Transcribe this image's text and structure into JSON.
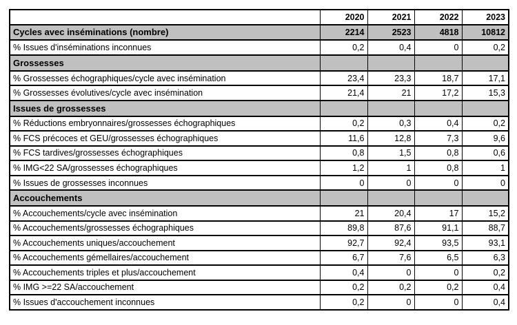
{
  "colors": {
    "page_bg": "#ffffff",
    "section_bg": "#c0c0c0",
    "border": "#000000",
    "text": "#000000"
  },
  "table": {
    "year_columns": [
      "2020",
      "2021",
      "2022",
      "2023"
    ],
    "rows": [
      {
        "label": "Cycles avec inséminations (nombre)",
        "style": "total",
        "values": [
          "2214",
          "2523",
          "4818",
          "10812"
        ]
      },
      {
        "label": "% Issues d'inséminations inconnues",
        "style": "data",
        "values": [
          "0,2",
          "0,4",
          "0",
          "0,2"
        ]
      },
      {
        "label": "Grossesses",
        "style": "section",
        "values": [
          "",
          "",
          "",
          ""
        ]
      },
      {
        "label": "% Grossesses échographiques/cycle avec insémination",
        "style": "data",
        "values": [
          "23,4",
          "23,3",
          "18,7",
          "17,1"
        ]
      },
      {
        "label": "% Grossesses évolutives/cycle avec insémination",
        "style": "data",
        "values": [
          "21,4",
          "21",
          "17,2",
          "15,3"
        ]
      },
      {
        "label": "Issues de grossesses",
        "style": "section",
        "values": [
          "",
          "",
          "",
          ""
        ]
      },
      {
        "label": "% Réductions embryonnaires/grossesses échographiques",
        "style": "data",
        "values": [
          "0,2",
          "0,3",
          "0,4",
          "0,2"
        ]
      },
      {
        "label": "% FCS précoces et GEU/grossesses échographiques",
        "style": "data",
        "values": [
          "11,6",
          "12,8",
          "7,3",
          "9,6"
        ]
      },
      {
        "label": "% FCS tardives/grossesses échographiques",
        "style": "data",
        "values": [
          "0,8",
          "1,5",
          "0,8",
          "0,6"
        ]
      },
      {
        "label": "% IMG<22 SA/grossesses échographiques",
        "style": "data",
        "values": [
          "1,2",
          "1",
          "0,8",
          "1"
        ]
      },
      {
        "label": "% Issues de grossesses inconnues",
        "style": "data",
        "values": [
          "0",
          "0",
          "0",
          "0"
        ]
      },
      {
        "label": "Accouchements",
        "style": "section",
        "values": [
          "",
          "",
          "",
          ""
        ]
      },
      {
        "label": "% Accouchements/cycle avec insémination",
        "style": "data",
        "values": [
          "21",
          "20,4",
          "17",
          "15,2"
        ]
      },
      {
        "label": "% Accouchements/grossesses échographiques",
        "style": "data",
        "values": [
          "89,8",
          "87,6",
          "91,1",
          "88,7"
        ]
      },
      {
        "label": "% Accouchements uniques/accouchement",
        "style": "data",
        "values": [
          "92,7",
          "92,4",
          "93,5",
          "93,1"
        ]
      },
      {
        "label": "% Accouchements gémellaires/accouchement",
        "style": "data",
        "values": [
          "6,7",
          "7,6",
          "6,5",
          "6,3"
        ]
      },
      {
        "label": "% Accouchements triples et plus/accouchement",
        "style": "data",
        "values": [
          "0,4",
          "0",
          "0",
          "0,2"
        ]
      },
      {
        "label": "% IMG >=22 SA/accouchement",
        "style": "data",
        "values": [
          "0,2",
          "0,2",
          "0,2",
          "0,4"
        ]
      },
      {
        "label": "% Issues d'accouchement inconnues",
        "style": "data",
        "values": [
          "0,2",
          "0",
          "0",
          "0,4"
        ]
      }
    ]
  }
}
